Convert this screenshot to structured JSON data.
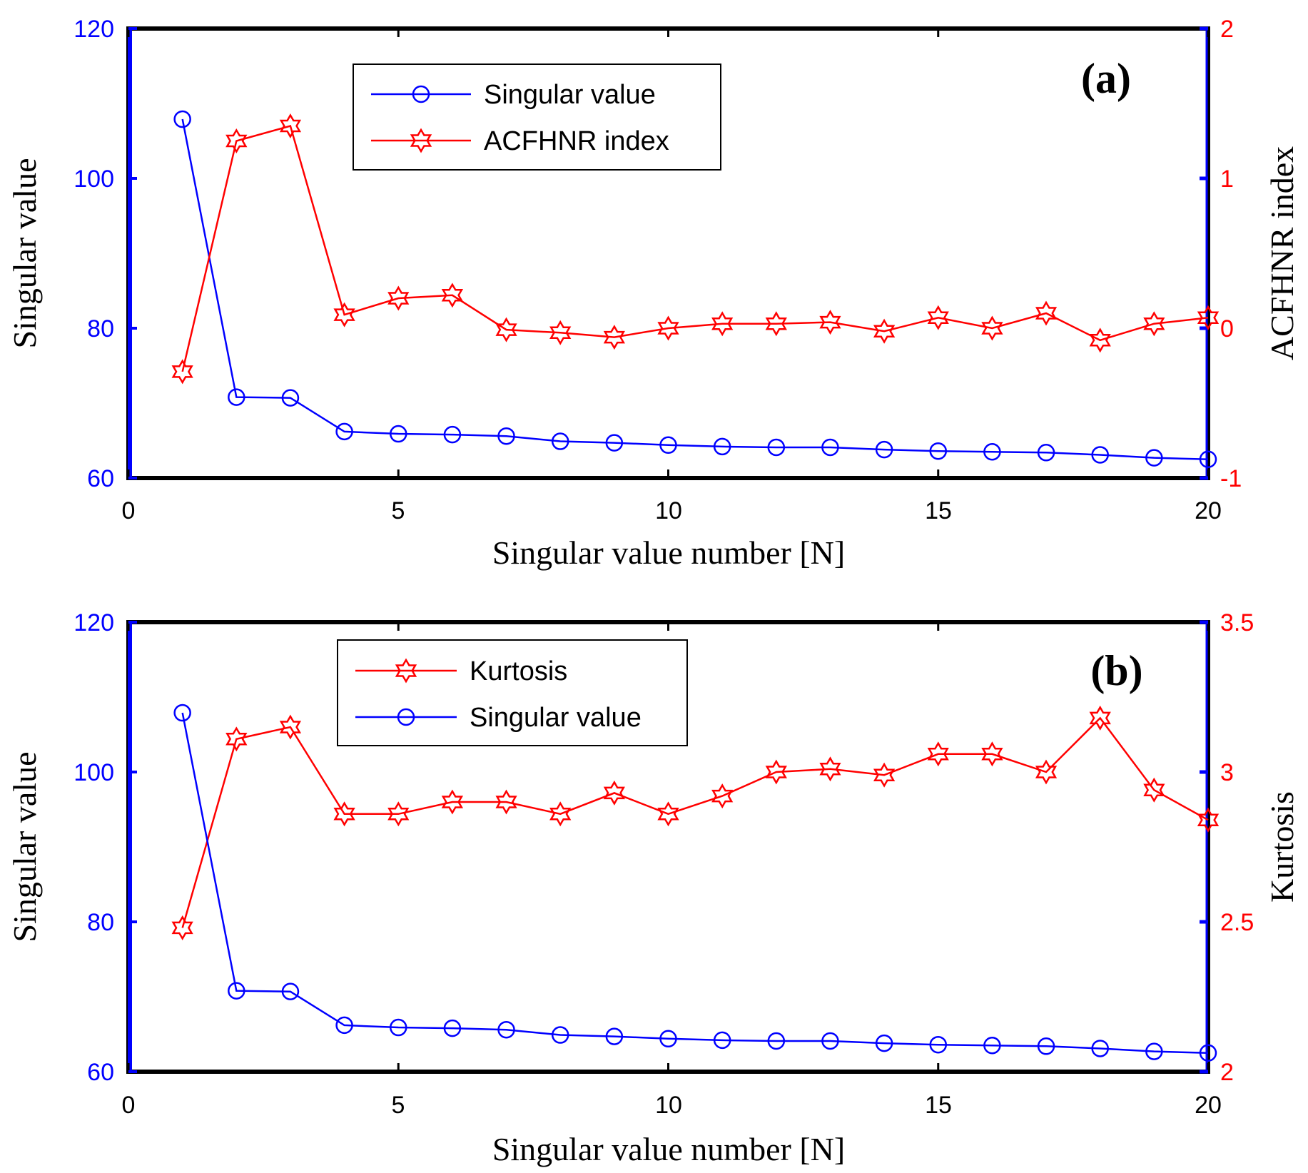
{
  "chart_data": [
    {
      "type": "line",
      "panel_label": "(a)",
      "xlabel": "Singular value number [N]",
      "ylabel_left": "Singular value",
      "ylabel_right": "ACFHNR index",
      "xlim": [
        0,
        20
      ],
      "ylim_left": [
        60,
        120
      ],
      "ylim_right": [
        -1,
        2
      ],
      "xticks": [
        "0",
        "5",
        "10",
        "15",
        "20"
      ],
      "yticks_left": [
        "60",
        "80",
        "100",
        "120"
      ],
      "yticks_right": [
        "-1",
        "0",
        "1",
        "2"
      ],
      "grid": false,
      "legend_position": "top-center",
      "x": [
        1,
        2,
        3,
        4,
        5,
        6,
        7,
        8,
        9,
        10,
        11,
        12,
        13,
        14,
        15,
        16,
        17,
        18,
        19,
        20
      ],
      "series": [
        {
          "name": "Singular value",
          "axis": "left",
          "color": "#0000ff",
          "marker": "circle",
          "values": [
            107.9,
            70.8,
            70.7,
            66.2,
            65.9,
            65.8,
            65.6,
            64.9,
            64.7,
            64.4,
            64.2,
            64.1,
            64.1,
            63.8,
            63.6,
            63.5,
            63.4,
            63.1,
            62.7,
            62.5
          ]
        },
        {
          "name": "ACFHNR index",
          "axis": "right",
          "color": "#ff0000",
          "marker": "hexagram",
          "values": [
            -0.29,
            1.25,
            1.35,
            0.09,
            0.2,
            0.22,
            -0.01,
            -0.03,
            -0.06,
            0.0,
            0.03,
            0.03,
            0.04,
            -0.02,
            0.07,
            0.0,
            0.1,
            -0.08,
            0.03,
            0.07
          ]
        }
      ],
      "legend_order": [
        "Singular value",
        "ACFHNR index"
      ]
    },
    {
      "type": "line",
      "panel_label": "(b)",
      "xlabel": "Singular value number [N]",
      "ylabel_left": "Singular value",
      "ylabel_right": "Kurtosis",
      "xlim": [
        0,
        20
      ],
      "ylim_left": [
        60,
        120
      ],
      "ylim_right": [
        2,
        3.5
      ],
      "xticks": [
        "0",
        "5",
        "10",
        "15",
        "20"
      ],
      "yticks_left": [
        "60",
        "80",
        "100",
        "120"
      ],
      "yticks_right": [
        "2",
        "2.5",
        "3",
        "3.5"
      ],
      "grid": false,
      "legend_position": "top-center",
      "x": [
        1,
        2,
        3,
        4,
        5,
        6,
        7,
        8,
        9,
        10,
        11,
        12,
        13,
        14,
        15,
        16,
        17,
        18,
        19,
        20
      ],
      "series": [
        {
          "name": "Kurtosis",
          "axis": "right",
          "color": "#ff0000",
          "marker": "hexagram",
          "values": [
            2.48,
            3.11,
            3.15,
            2.86,
            2.86,
            2.9,
            2.9,
            2.86,
            2.93,
            2.86,
            2.92,
            3.0,
            3.01,
            2.99,
            3.06,
            3.06,
            3.0,
            3.18,
            2.94,
            2.84
          ]
        },
        {
          "name": "Singular value",
          "axis": "left",
          "color": "#0000ff",
          "marker": "circle",
          "values": [
            107.9,
            70.8,
            70.7,
            66.2,
            65.9,
            65.8,
            65.6,
            64.9,
            64.7,
            64.4,
            64.2,
            64.1,
            64.1,
            63.8,
            63.6,
            63.5,
            63.4,
            63.1,
            62.7,
            62.5
          ]
        }
      ],
      "legend_order": [
        "Kurtosis",
        "Singular value"
      ]
    }
  ]
}
